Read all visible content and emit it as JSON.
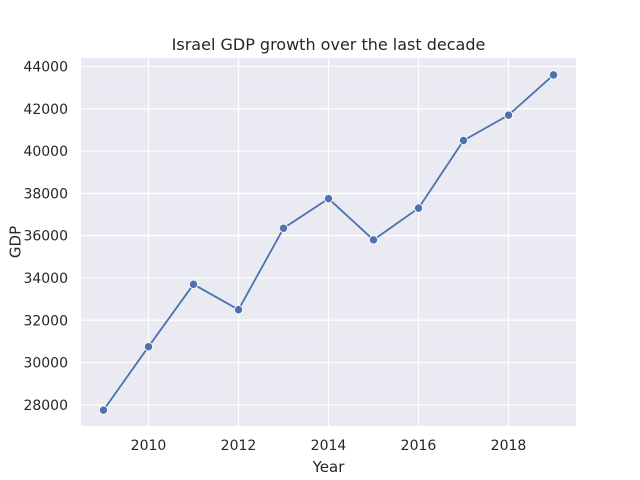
{
  "chart_data": {
    "type": "line",
    "title": "Israel GDP growth over the last decade",
    "xlabel": "Year",
    "ylabel": "GDP",
    "x": [
      2009,
      2010,
      2011,
      2012,
      2013,
      2014,
      2015,
      2016,
      2017,
      2018,
      2019
    ],
    "series": [
      {
        "values": [
          27750,
          30750,
          33700,
          32500,
          36350,
          37750,
          35800,
          37300,
          40500,
          41700,
          43600
        ]
      }
    ],
    "xlim": [
      2008.5,
      2019.5
    ],
    "ylim": [
      27000,
      44400
    ],
    "xticks": [
      2010,
      2012,
      2014,
      2016,
      2018
    ],
    "yticks": [
      28000,
      30000,
      32000,
      34000,
      36000,
      38000,
      40000,
      42000,
      44000
    ],
    "grid": true,
    "markers": true,
    "colors": {
      "line": "#4c72b0",
      "plot_background": "#eaeaf2",
      "grid": "#ffffff",
      "text": "#262626"
    }
  }
}
